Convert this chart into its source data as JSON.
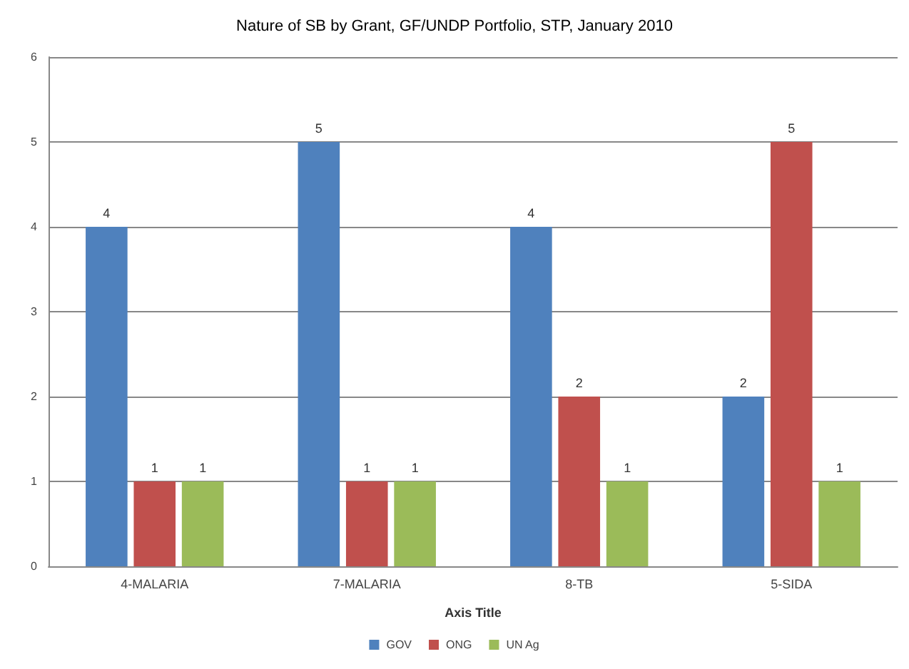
{
  "chart_data": {
    "type": "bar",
    "title": "Nature of SB by Grant, GF/UNDP Portfolio, STP, January 2010",
    "xlabel": "Axis Title",
    "categories": [
      "4-MALARIA",
      "7-MALARIA",
      "8-TB",
      "5-SIDA"
    ],
    "series": [
      {
        "name": "GOV",
        "color": "#4f81bd",
        "values": [
          4,
          5,
          4,
          2
        ]
      },
      {
        "name": "ONG",
        "color": "#c0504d",
        "values": [
          1,
          1,
          2,
          5
        ]
      },
      {
        "name": "UN Ag",
        "color": "#9bbb59",
        "values": [
          1,
          1,
          1,
          1
        ]
      }
    ],
    "ylim": [
      0,
      6
    ],
    "yticks": [
      0,
      1,
      2,
      3,
      4,
      5,
      6
    ],
    "grid": "y",
    "legend": "bottom",
    "data_labels": true
  }
}
